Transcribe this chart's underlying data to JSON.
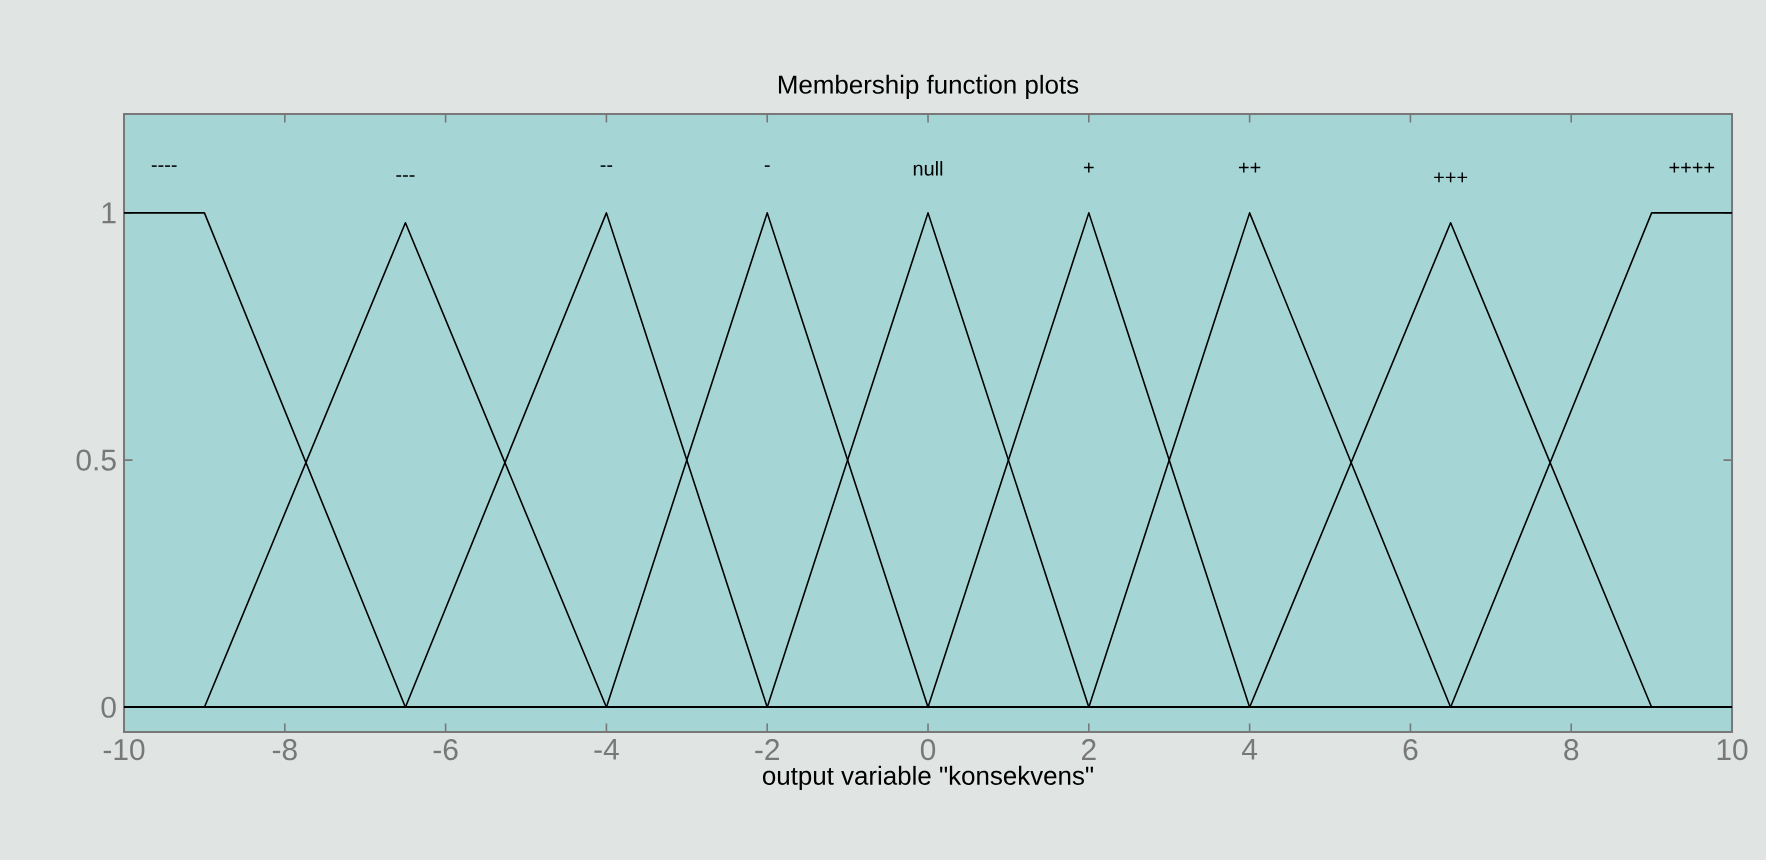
{
  "chart_data": {
    "type": "line",
    "title": "Membership function plots",
    "xlabel": "output variable \"konsekvens\"",
    "xlim": [
      -10,
      10
    ],
    "ylim": [
      -0.05,
      1.2
    ],
    "xticks": [
      -10,
      -8,
      -6,
      -4,
      -2,
      0,
      2,
      4,
      6,
      8,
      10
    ],
    "yticks": [
      0,
      0.5,
      1
    ],
    "legend": false,
    "grid": false,
    "marker": "none",
    "line_style": "solid",
    "series": [
      {
        "name": "----",
        "color": "#000000",
        "x": [
          -10,
          -9,
          -6.5,
          10
        ],
        "values": [
          1,
          1,
          0,
          0
        ]
      },
      {
        "name": "---",
        "color": "#000000",
        "x": [
          -10,
          -9,
          -6.5,
          -4,
          10
        ],
        "values": [
          0,
          0,
          0.98,
          0,
          0
        ]
      },
      {
        "name": "--",
        "color": "#000000",
        "x": [
          -10,
          -6.5,
          -4,
          -2,
          10
        ],
        "values": [
          0,
          0,
          1,
          0,
          0
        ]
      },
      {
        "name": "-",
        "color": "#000000",
        "x": [
          -10,
          -4,
          -2,
          0,
          10
        ],
        "values": [
          0,
          0,
          1,
          0,
          0
        ]
      },
      {
        "name": "null",
        "color": "#000000",
        "x": [
          -10,
          -2,
          0,
          2,
          10
        ],
        "values": [
          0,
          0,
          1,
          0,
          0
        ]
      },
      {
        "name": "+",
        "color": "#000000",
        "x": [
          -10,
          0,
          2,
          4,
          10
        ],
        "values": [
          0,
          0,
          1,
          0,
          0
        ]
      },
      {
        "name": "++",
        "color": "#000000",
        "x": [
          -10,
          2,
          4,
          6.5,
          10
        ],
        "values": [
          0,
          0,
          1,
          0,
          0
        ]
      },
      {
        "name": "+++",
        "color": "#000000",
        "x": [
          -10,
          4,
          6.5,
          9,
          10
        ],
        "values": [
          0,
          0,
          0.98,
          0,
          0
        ]
      },
      {
        "name": "++++",
        "color": "#000000",
        "x": [
          -10,
          6.5,
          9,
          10
        ],
        "values": [
          0,
          0,
          1,
          1
        ]
      }
    ]
  }
}
